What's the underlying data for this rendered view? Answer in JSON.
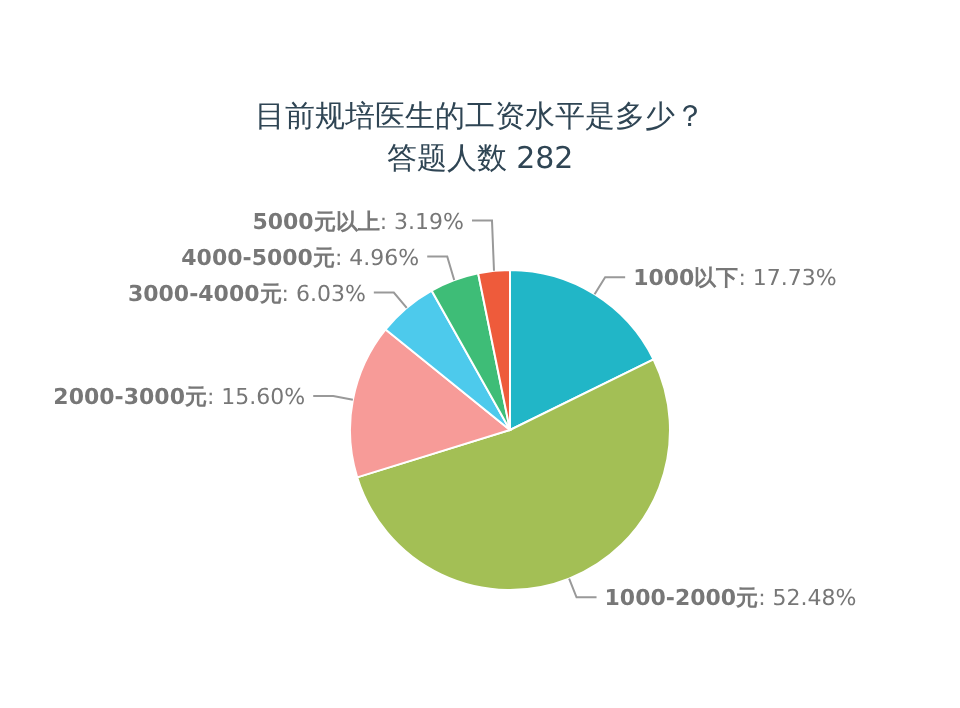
{
  "chart_data": {
    "type": "pie",
    "title": "目前规培医生的工资水平是多少？",
    "subtitle": "答题人数 282",
    "categories": [
      "1000以下",
      "1000-2000元",
      "2000-3000元",
      "3000-4000元",
      "4000-5000元",
      "5000元以上"
    ],
    "values": [
      17.73,
      52.48,
      15.6,
      6.03,
      4.96,
      3.19
    ],
    "value_labels": [
      ": 17.73%",
      ": 52.48%",
      ": 15.60%",
      ": 6.03%",
      ": 4.96%",
      ": 3.19%"
    ],
    "colors": [
      "#21b6c7",
      "#a3bf55",
      "#f79b98",
      "#4dcaec",
      "#3ebd77",
      "#ee5b3b"
    ]
  }
}
